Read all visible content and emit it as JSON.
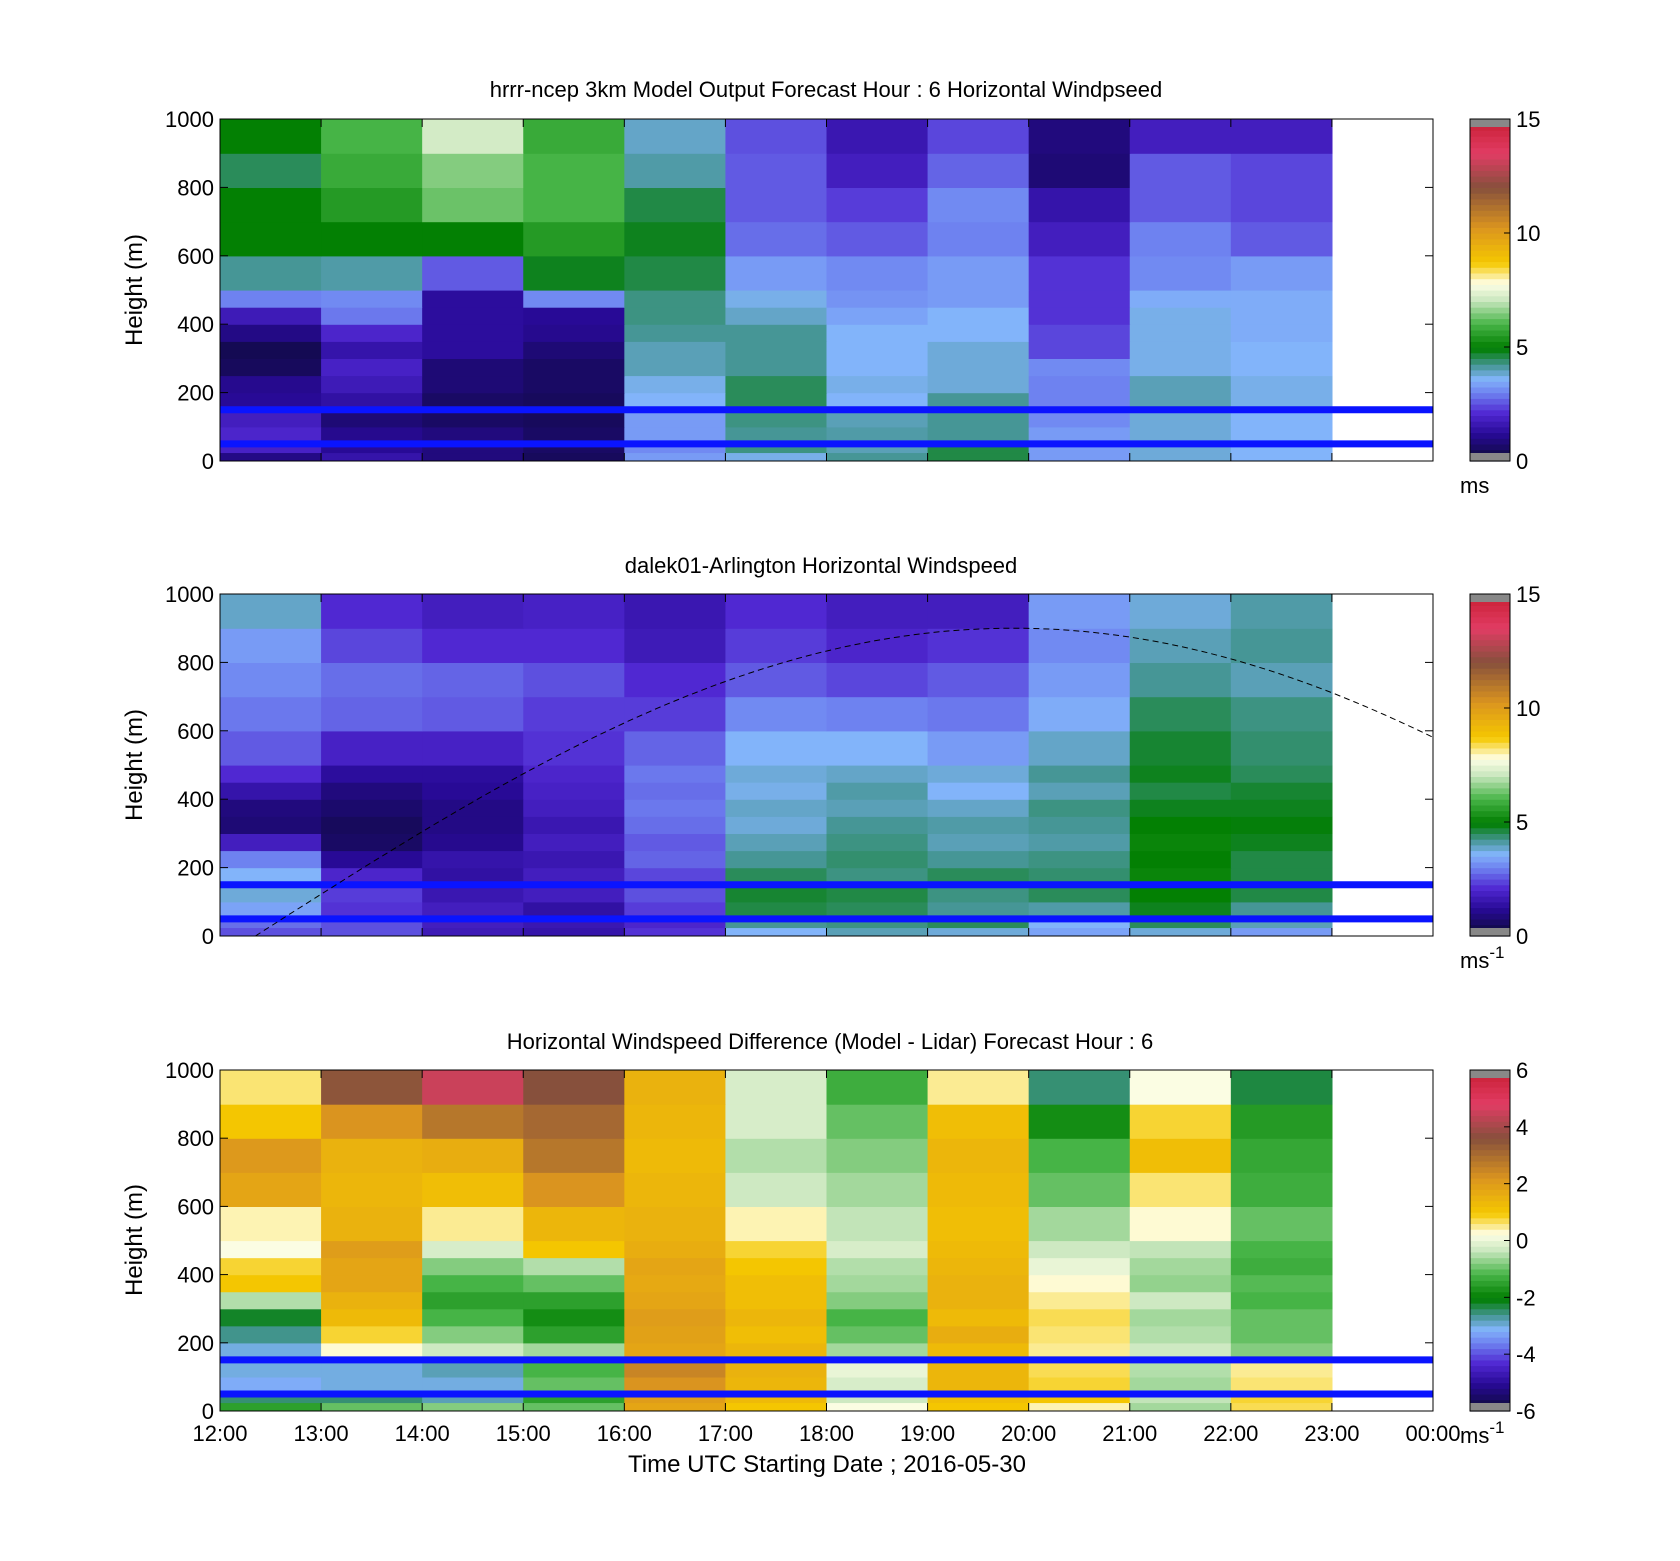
{
  "figure": {
    "xlabel": "Time UTC  Starting Date ; 2016-05-30",
    "xticks": [
      "12:00",
      "13:00",
      "14:00",
      "15:00",
      "16:00",
      "17:00",
      "18:00",
      "19:00",
      "20:00",
      "21:00",
      "22:00",
      "23:00",
      "00:00"
    ]
  },
  "chart_data": [
    {
      "type": "heatmap",
      "title": "hrrr-ncep 3km Model Output   Forecast Hour : 6 Horizontal Windpseed",
      "ylabel": "Height (m)",
      "ylim": [
        0,
        1000
      ],
      "yticks": [
        "0",
        "200",
        "400",
        "600",
        "800",
        "1000"
      ],
      "colorbar": {
        "range": [
          0,
          15
        ],
        "ticks": [
          "0",
          "5",
          "10",
          "15"
        ],
        "unit": "ms"
      },
      "reference_lines_m": [
        50,
        150
      ],
      "x_hours": [
        12,
        13,
        14,
        15,
        16,
        17,
        18,
        19,
        20,
        21,
        22
      ],
      "height_bins_m": [
        0,
        25,
        50,
        100,
        150,
        200,
        250,
        300,
        350,
        400,
        450,
        500,
        600,
        700,
        800,
        900,
        1000
      ],
      "values_ms": [
        [
          1.0,
          1.5,
          0.9,
          0.5,
          3.3,
          3.7,
          4.2,
          4.6,
          3.3,
          3.8,
          3.6
        ],
        [
          1.9,
          1.2,
          0.9,
          0.6,
          3.1,
          4.3,
          4.0,
          4.6,
          3.3,
          3.8,
          3.6
        ],
        [
          2.0,
          1.1,
          0.9,
          0.6,
          3.3,
          4.2,
          4.1,
          4.2,
          3.3,
          3.8,
          3.6
        ],
        [
          1.8,
          0.8,
          0.6,
          0.5,
          3.3,
          4.3,
          4.0,
          4.2,
          3.1,
          3.8,
          3.6
        ],
        [
          1.2,
          1.4,
          0.6,
          0.5,
          3.6,
          4.5,
          3.6,
          4.2,
          3.0,
          4.0,
          3.7
        ],
        [
          1.1,
          1.7,
          0.8,
          0.6,
          3.7,
          4.5,
          3.7,
          3.8,
          3.0,
          4.0,
          3.7
        ],
        [
          0.5,
          1.9,
          0.8,
          0.6,
          4.0,
          4.2,
          3.6,
          3.8,
          3.1,
          3.7,
          3.6
        ],
        [
          0.4,
          1.5,
          1.3,
          0.8,
          4.0,
          4.2,
          3.6,
          3.8,
          2.4,
          3.7,
          3.6
        ],
        [
          1.0,
          2.0,
          1.3,
          1.1,
          4.2,
          4.2,
          3.6,
          3.6,
          2.4,
          3.7,
          3.5
        ],
        [
          1.7,
          2.9,
          1.3,
          1.2,
          4.3,
          3.9,
          3.4,
          3.6,
          2.2,
          3.7,
          3.5
        ],
        [
          3.0,
          3.1,
          1.3,
          3.1,
          4.3,
          3.7,
          3.2,
          3.3,
          2.2,
          3.5,
          3.5
        ],
        [
          4.2,
          4.1,
          2.6,
          4.8,
          4.6,
          3.3,
          3.1,
          3.3,
          2.2,
          3.1,
          3.3
        ],
        [
          5.0,
          5.0,
          5.0,
          5.5,
          4.8,
          2.8,
          2.6,
          3.0,
          1.8,
          3.0,
          2.6
        ],
        [
          5.0,
          5.5,
          6.3,
          6.0,
          4.6,
          2.6,
          2.3,
          3.1,
          1.5,
          2.6,
          2.4
        ],
        [
          4.5,
          5.8,
          6.5,
          6.0,
          4.1,
          2.6,
          1.8,
          2.7,
          0.8,
          2.6,
          2.4
        ],
        [
          5.0,
          6.0,
          7.2,
          5.8,
          3.9,
          2.5,
          1.6,
          2.4,
          0.9,
          1.8,
          1.8
        ]
      ]
    },
    {
      "type": "heatmap",
      "title": "dalek01-Arlington  Horizontal Windspeed",
      "ylabel": "Height (m)",
      "ylim": [
        0,
        1000
      ],
      "yticks": [
        "0",
        "200",
        "400",
        "600",
        "800",
        "1000"
      ],
      "colorbar": {
        "range": [
          0,
          15
        ],
        "ticks": [
          "0",
          "5",
          "10",
          "15"
        ],
        "unit": "ms-1"
      },
      "reference_lines_m": [
        50,
        150
      ],
      "x_hours": [
        12,
        13,
        14,
        15,
        16,
        17,
        18,
        19,
        20,
        21,
        22
      ],
      "height_bins_m": [
        0,
        25,
        50,
        100,
        150,
        200,
        250,
        300,
        350,
        400,
        450,
        500,
        600,
        700,
        800,
        900,
        1000
      ],
      "values_ms": [
        [
          2.5,
          2.5,
          1.7,
          1.5,
          2.2,
          3.6,
          4.0,
          3.8,
          3.4,
          3.8,
          3.3
        ],
        [
          2.8,
          2.5,
          1.8,
          1.6,
          2.0,
          4.2,
          4.3,
          4.5,
          3.6,
          4.5,
          4.0
        ],
        [
          3.4,
          2.2,
          1.8,
          1.4,
          2.3,
          4.6,
          4.5,
          4.2,
          4.1,
          4.8,
          4.2
        ],
        [
          3.8,
          2.3,
          1.6,
          1.8,
          2.5,
          4.7,
          4.6,
          4.3,
          4.5,
          5.0,
          4.6
        ],
        [
          3.6,
          2.0,
          1.4,
          1.8,
          2.4,
          4.5,
          4.3,
          4.5,
          4.4,
          5.1,
          4.6
        ],
        [
          3.0,
          1.2,
          1.5,
          1.6,
          2.7,
          4.2,
          4.4,
          4.2,
          4.3,
          5.0,
          4.6
        ],
        [
          1.8,
          0.6,
          1.1,
          1.8,
          2.6,
          4.0,
          4.3,
          4.0,
          4.1,
          5.1,
          4.8
        ],
        [
          0.8,
          0.5,
          1.0,
          1.6,
          2.8,
          3.8,
          4.2,
          4.1,
          4.2,
          5.0,
          4.9
        ],
        [
          0.9,
          0.7,
          1.0,
          1.8,
          2.9,
          3.9,
          4.0,
          3.9,
          4.3,
          4.8,
          4.8
        ],
        [
          1.5,
          0.9,
          1.2,
          1.9,
          2.8,
          3.7,
          4.1,
          3.6,
          4.0,
          4.6,
          4.7
        ],
        [
          2.1,
          1.3,
          1.3,
          2.0,
          2.9,
          3.8,
          3.9,
          3.8,
          4.2,
          4.8,
          4.5
        ],
        [
          2.6,
          1.9,
          1.9,
          2.2,
          2.7,
          3.6,
          3.6,
          3.3,
          3.9,
          4.7,
          4.4
        ],
        [
          2.9,
          2.7,
          2.6,
          2.3,
          2.3,
          3.1,
          3.0,
          2.9,
          3.5,
          4.5,
          4.3
        ],
        [
          3.1,
          2.8,
          2.7,
          2.5,
          2.1,
          2.6,
          2.4,
          2.6,
          3.3,
          4.2,
          4.0
        ],
        [
          3.3,
          2.4,
          2.1,
          2.1,
          1.7,
          2.3,
          2.0,
          2.2,
          3.1,
          4.0,
          4.2
        ],
        [
          3.9,
          2.1,
          1.8,
          1.9,
          1.6,
          2.1,
          1.8,
          1.8,
          3.3,
          3.8,
          4.1
        ]
      ]
    },
    {
      "type": "heatmap",
      "title": "Horizontal Windspeed Difference (Model - Lidar) Forecast Hour : 6",
      "ylabel": "Height (m)",
      "ylim": [
        0,
        1000
      ],
      "yticks": [
        "0",
        "200",
        "400",
        "600",
        "800",
        "1000"
      ],
      "colorbar": {
        "range": [
          -6,
          6
        ],
        "ticks": [
          "-6",
          "-4",
          "-2",
          "0",
          "2",
          "4",
          "6"
        ],
        "unit": "ms-1"
      },
      "reference_lines_m": [
        50,
        150
      ],
      "x_hours": [
        12,
        13,
        14,
        15,
        16,
        17,
        18,
        19,
        20,
        21,
        22
      ],
      "height_bins_m": [
        0,
        25,
        50,
        100,
        150,
        200,
        250,
        300,
        350,
        400,
        450,
        500,
        600,
        700,
        800,
        900,
        1000
      ],
      "values_ms": [
        [
          -1.5,
          -1.0,
          -0.8,
          -1.0,
          1.8,
          1.0,
          0.2,
          1.0,
          0.4,
          -0.6,
          0.7
        ],
        [
          -2.5,
          -2.5,
          -2.8,
          -1.5,
          2.0,
          1.3,
          -0.3,
          1.2,
          1.0,
          -0.4,
          0.8
        ],
        [
          -3.2,
          -3.0,
          -3.0,
          -1.0,
          2.2,
          1.4,
          -0.2,
          1.4,
          0.8,
          -0.6,
          0.6
        ],
        [
          -3.0,
          -3.0,
          -2.8,
          -1.2,
          2.5,
          1.5,
          0.0,
          1.4,
          0.7,
          -0.5,
          0.5
        ],
        [
          -3.0,
          0.3,
          -0.3,
          -0.6,
          1.8,
          1.4,
          -0.6,
          1.3,
          0.5,
          -0.3,
          -0.8
        ],
        [
          -2.6,
          0.8,
          -0.8,
          -1.5,
          1.9,
          1.2,
          -1.0,
          1.6,
          0.6,
          -0.5,
          -1.0
        ],
        [
          -2.2,
          1.3,
          -1.2,
          -1.8,
          2.0,
          1.4,
          -1.2,
          1.3,
          0.7,
          -0.6,
          -1.0
        ],
        [
          -0.5,
          1.5,
          -1.5,
          -1.5,
          1.8,
          1.2,
          -0.8,
          1.5,
          0.5,
          -0.3,
          -1.2
        ],
        [
          1.0,
          1.8,
          -1.2,
          -1.0,
          1.7,
          1.2,
          -0.6,
          1.5,
          0.3,
          -0.7,
          -1.1
        ],
        [
          0.8,
          1.8,
          -0.8,
          -0.5,
          1.8,
          1.0,
          -0.5,
          1.4,
          0.0,
          -0.6,
          -1.3
        ],
        [
          0.2,
          2.0,
          -0.2,
          1.0,
          1.6,
          0.8,
          -0.2,
          1.3,
          -0.3,
          -0.4,
          -1.2
        ],
        [
          0.4,
          1.5,
          0.5,
          1.4,
          1.5,
          0.4,
          -0.4,
          1.2,
          -0.6,
          0.3,
          -1.0
        ],
        [
          1.8,
          1.4,
          1.2,
          2.2,
          1.4,
          -0.3,
          -0.6,
          1.3,
          -1.0,
          0.6,
          -1.3
        ],
        [
          2.1,
          1.5,
          1.6,
          2.8,
          1.3,
          -0.5,
          -0.8,
          1.4,
          -1.2,
          1.2,
          -1.4
        ],
        [
          1.0,
          2.2,
          2.8,
          3.1,
          1.4,
          -0.2,
          -1.0,
          1.2,
          -1.8,
          0.8,
          -1.6
        ],
        [
          0.6,
          3.5,
          4.5,
          3.6,
          1.5,
          -0.2,
          -1.3,
          0.5,
          -2.5,
          0.2,
          -2.3
        ]
      ]
    }
  ]
}
